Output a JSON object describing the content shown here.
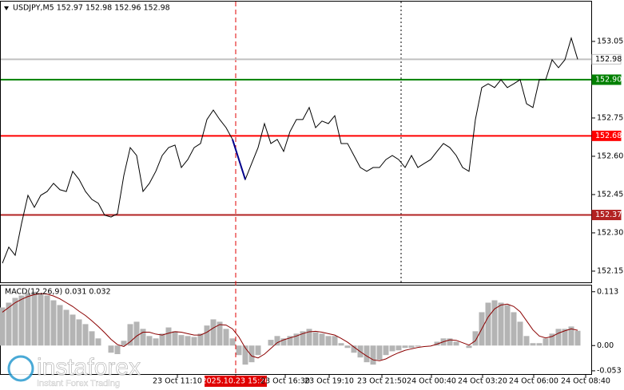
{
  "header": "USDJPY,M5  152.97 152.98 152.96 152.98",
  "watermark": {
    "brand": "instaforex",
    "tagline": "Instant Forex Trading"
  },
  "x_labels": [
    "23 Oct 11:10",
    "2025.10.23 15:20",
    "23 Oct 16:30",
    "23 Oct 19:10",
    "23 Oct 21:50",
    "24 Oct 00:40",
    "24 Oct 03:20",
    "24 Oct 06:00",
    "24 Oct 08:40"
  ],
  "chart_data": [
    {
      "type": "line",
      "ylim": [
        152.103,
        153.206
      ],
      "yticks": [
        153.05,
        152.75,
        {
          "value": 152.6,
          "label": "152.60"
        },
        152.45,
        {
          "value": 152.3,
          "label": "152.30"
        },
        152.15
      ],
      "levels": [
        {
          "value": 152.98,
          "label": "152.98",
          "color": "#c0c0c0",
          "label_color": "#000000",
          "label_bg": "#ffffff"
        },
        {
          "value": 152.9,
          "label": "152.90",
          "color": "#008000",
          "label_color": "#ffffff",
          "label_bg": "#008000"
        },
        {
          "value": 152.68,
          "label": "152.68",
          "color": "#ff0000",
          "label_color": "#ffffff",
          "label_bg": "#ff0000"
        },
        {
          "value": 152.37,
          "label": "152.37",
          "color": "#b22222",
          "label_color": "#ffffff",
          "label_bg": "#b22222"
        }
      ],
      "series": [
        {
          "color": "#000000",
          "values": [
            152.181,
            152.244,
            152.212,
            152.337,
            152.447,
            152.4,
            152.447,
            152.462,
            152.494,
            152.469,
            152.462,
            152.541,
            152.509,
            152.462,
            152.431,
            152.416,
            152.369,
            152.362,
            152.375,
            152.525,
            152.634,
            152.603,
            152.462,
            152.494,
            152.541,
            152.603,
            152.634,
            152.644,
            152.556,
            152.587,
            152.634,
            152.65,
            152.744,
            152.781,
            152.744,
            152.712,
            152.666,
            152.587,
            152.509,
            152.572,
            152.634,
            152.728,
            152.65,
            152.666,
            152.619,
            152.697,
            152.744,
            152.744,
            152.791,
            152.712,
            152.738,
            152.728,
            152.759,
            152.65,
            152.65,
            152.603,
            152.556,
            152.541,
            152.556,
            152.556,
            152.587,
            152.603,
            152.587,
            152.556,
            152.603,
            152.556,
            152.572,
            152.587,
            152.619,
            152.65,
            152.634,
            152.603,
            152.556,
            152.541,
            152.744,
            152.869,
            152.884,
            152.869,
            152.9,
            152.869,
            152.884,
            152.9,
            152.806,
            152.791,
            152.9,
            152.9,
            152.978,
            152.947,
            152.978,
            153.063,
            152.98
          ]
        },
        {
          "color": "#00008b",
          "values": [
            null,
            null,
            null,
            null,
            null,
            null,
            null,
            null,
            null,
            null,
            null,
            null,
            null,
            null,
            null,
            null,
            null,
            null,
            null,
            null,
            null,
            null,
            null,
            null,
            null,
            null,
            null,
            null,
            null,
            null,
            null,
            null,
            null,
            null,
            null,
            null,
            152.666,
            152.587,
            152.509,
            null,
            null,
            null,
            null,
            null,
            null,
            null,
            null,
            null,
            null,
            null,
            null,
            null,
            null,
            null,
            null,
            null,
            null,
            null,
            null,
            null,
            null,
            null,
            null,
            null,
            null,
            null,
            null,
            null,
            null,
            null,
            null,
            null,
            null,
            null,
            null,
            null,
            null,
            null,
            null,
            null,
            null,
            null,
            null,
            null,
            null,
            null,
            null,
            null,
            null,
            null,
            null
          ]
        }
      ]
    },
    {
      "type": "macd",
      "title": "MACD(12,26,9) 0.031 0.032",
      "ylim": [
        -0.0615,
        0.126
      ],
      "yticks": [
        0.113,
        {
          "value": 0,
          "label": "0.00"
        },
        -0.053
      ],
      "series": [
        {
          "color": "#b4b4b4",
          "values": [
            0.08,
            0.09,
            0.1,
            0.105,
            0.11,
            0.113,
            0.11,
            0.105,
            0.095,
            0.085,
            0.075,
            0.065,
            0.055,
            0.045,
            0.03,
            0.015,
            0.0,
            -0.015,
            -0.018,
            0.01,
            0.045,
            0.05,
            0.035,
            0.02,
            0.015,
            0.025,
            0.038,
            0.03,
            0.022,
            0.02,
            0.018,
            0.025,
            0.042,
            0.055,
            0.05,
            0.035,
            0.015,
            -0.02,
            -0.04,
            -0.035,
            -0.02,
            0.0,
            0.012,
            0.02,
            0.015,
            0.02,
            0.025,
            0.03,
            0.035,
            0.028,
            0.025,
            0.02,
            0.02,
            0.005,
            -0.005,
            -0.015,
            -0.025,
            -0.035,
            -0.04,
            -0.03,
            -0.02,
            -0.012,
            -0.01,
            -0.005,
            -0.005,
            -0.002,
            0.0,
            0.0,
            0.008,
            0.015,
            0.015,
            0.008,
            0.0,
            -0.005,
            0.03,
            0.07,
            0.09,
            0.095,
            0.09,
            0.085,
            0.07,
            0.05,
            0.02,
            0.005,
            0.005,
            0.015,
            0.025,
            0.035,
            0.035,
            0.04,
            0.031
          ]
        },
        {
          "color": "#8b0000",
          "values": [
            0.07,
            0.08,
            0.09,
            0.097,
            0.103,
            0.107,
            0.109,
            0.108,
            0.104,
            0.098,
            0.09,
            0.082,
            0.072,
            0.063,
            0.052,
            0.04,
            0.027,
            0.013,
            0.002,
            -0.002,
            0.008,
            0.02,
            0.028,
            0.028,
            0.024,
            0.022,
            0.026,
            0.029,
            0.028,
            0.025,
            0.022,
            0.022,
            0.028,
            0.037,
            0.044,
            0.043,
            0.035,
            0.018,
            -0.005,
            -0.022,
            -0.026,
            -0.018,
            -0.006,
            0.006,
            0.012,
            0.016,
            0.02,
            0.025,
            0.029,
            0.03,
            0.028,
            0.025,
            0.022,
            0.015,
            0.007,
            -0.003,
            -0.013,
            -0.022,
            -0.03,
            -0.032,
            -0.028,
            -0.021,
            -0.015,
            -0.01,
            -0.007,
            -0.004,
            -0.002,
            -0.001,
            0.003,
            0.008,
            0.012,
            0.011,
            0.006,
            0.001,
            0.01,
            0.035,
            0.06,
            0.077,
            0.085,
            0.087,
            0.082,
            0.071,
            0.052,
            0.033,
            0.02,
            0.016,
            0.019,
            0.026,
            0.031,
            0.035,
            0.032
          ]
        }
      ]
    }
  ]
}
